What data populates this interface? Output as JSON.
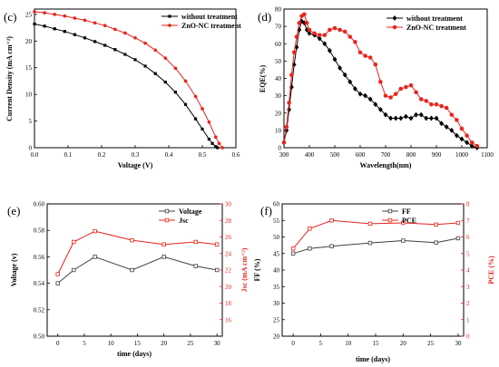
{
  "chart_data": [
    {
      "panel_label": "(c)",
      "type": "line",
      "xlabel": "Voltage (V)",
      "ylabel": "Current Density (mA cm⁻²)",
      "xlim": [
        0.0,
        0.6
      ],
      "ylim": [
        0,
        26
      ],
      "xticks": [
        "0.0",
        "0.1",
        "0.2",
        "0.3",
        "0.4",
        "0.5",
        "0.6"
      ],
      "yticks": [
        "0",
        "5",
        "10",
        "15",
        "20",
        "25"
      ],
      "legend_position": "top-right",
      "series": [
        {
          "name": "without treatment",
          "color": "#000000",
          "marker": "square",
          "x": [
            0.0,
            0.03,
            0.06,
            0.09,
            0.12,
            0.15,
            0.18,
            0.21,
            0.24,
            0.27,
            0.3,
            0.33,
            0.36,
            0.39,
            0.42,
            0.45,
            0.48,
            0.5,
            0.52,
            0.53,
            0.54,
            0.545
          ],
          "y": [
            23.2,
            22.8,
            22.3,
            21.8,
            21.2,
            20.6,
            19.9,
            19.2,
            18.4,
            17.5,
            16.5,
            15.3,
            13.9,
            12.3,
            10.4,
            8.1,
            5.4,
            3.5,
            1.6,
            0.8,
            0.2,
            0
          ]
        },
        {
          "name": "ZnO-NC treatment",
          "color": "#e8241c",
          "marker": "circle",
          "x": [
            0.0,
            0.03,
            0.06,
            0.09,
            0.12,
            0.15,
            0.18,
            0.21,
            0.24,
            0.27,
            0.3,
            0.33,
            0.36,
            0.39,
            0.42,
            0.45,
            0.48,
            0.5,
            0.52,
            0.54,
            0.55,
            0.56
          ],
          "y": [
            25.5,
            25.3,
            25.0,
            24.7,
            24.3,
            23.9,
            23.4,
            22.9,
            22.2,
            21.5,
            20.6,
            19.6,
            18.3,
            16.8,
            14.9,
            12.5,
            9.6,
            7.3,
            4.8,
            2.0,
            0.8,
            0
          ]
        }
      ]
    },
    {
      "panel_label": "(d)",
      "type": "line",
      "xlabel": "Wavelength(nm)",
      "ylabel": "EQE(%)",
      "xlim": [
        300,
        1100
      ],
      "ylim": [
        0,
        80
      ],
      "xticks": [
        "300",
        "400",
        "500",
        "600",
        "700",
        "800",
        "900",
        "1000",
        "1100"
      ],
      "yticks": [
        "0",
        "10",
        "20",
        "30",
        "40",
        "50",
        "60",
        "70",
        "80"
      ],
      "legend_position": "top-right",
      "series": [
        {
          "name": "without treatment",
          "color": "#000000",
          "marker": "diamond",
          "x": [
            300,
            310,
            320,
            330,
            340,
            350,
            360,
            370,
            380,
            390,
            400,
            420,
            440,
            460,
            480,
            500,
            520,
            540,
            560,
            580,
            600,
            620,
            640,
            660,
            680,
            700,
            720,
            740,
            760,
            780,
            800,
            820,
            840,
            860,
            880,
            900,
            920,
            940,
            960,
            980,
            1000,
            1020,
            1040,
            1060
          ],
          "y": [
            3,
            10,
            22,
            35,
            48,
            58,
            68,
            73,
            72,
            68,
            66,
            65,
            63,
            60,
            56,
            51,
            46,
            42,
            38,
            34,
            31,
            30,
            28,
            25,
            22,
            19,
            17,
            17,
            17,
            18,
            17,
            19,
            19,
            17,
            17,
            17,
            14,
            12,
            10,
            7,
            5,
            3,
            1,
            0
          ]
        },
        {
          "name": "ZnO-NC treatment",
          "color": "#e8241c",
          "marker": "circle",
          "x": [
            300,
            310,
            320,
            330,
            340,
            350,
            360,
            370,
            380,
            390,
            400,
            420,
            440,
            460,
            480,
            500,
            520,
            540,
            560,
            580,
            600,
            620,
            640,
            660,
            680,
            700,
            720,
            740,
            760,
            780,
            800,
            820,
            840,
            860,
            880,
            900,
            920,
            940,
            960,
            980,
            1000,
            1020,
            1040,
            1060
          ],
          "y": [
            3,
            12,
            26,
            42,
            55,
            64,
            72,
            76,
            77,
            72,
            68,
            66,
            65,
            65,
            68,
            69,
            68,
            67,
            64,
            61,
            55,
            53,
            52,
            48,
            38,
            30,
            29,
            31,
            34,
            35,
            36,
            32,
            28,
            27,
            25,
            25,
            24,
            23,
            19,
            16,
            11,
            7,
            3,
            1
          ]
        }
      ]
    },
    {
      "panel_label": "(e)",
      "type": "line",
      "xlabel": "time (days)",
      "ylabel_left": "Voltage (v)",
      "ylabel_right": "Jsc (mA cm⁻²)",
      "x": [
        0,
        3,
        7,
        14,
        20,
        26,
        30
      ],
      "xticks": [
        "0",
        "5",
        "10",
        "15",
        "20",
        "25",
        "30"
      ],
      "xlim": [
        -2,
        31
      ],
      "ylim_left": [
        0.5,
        0.6
      ],
      "yticks_left": [
        "0.50",
        "0.52",
        "0.54",
        "0.56",
        "0.58",
        "0.60"
      ],
      "ylim_right": [
        14,
        30
      ],
      "yticks_right": [
        "16",
        "18",
        "20",
        "22",
        "24",
        "26",
        "28",
        "30"
      ],
      "legend_position": "top-right",
      "series": [
        {
          "name": "Voltage",
          "axis": "left",
          "color": "#404040",
          "marker": "square",
          "values": [
            0.54,
            0.55,
            0.56,
            0.55,
            0.56,
            0.553,
            0.55
          ]
        },
        {
          "name": "Jsc",
          "axis": "right",
          "color": "#e8241c",
          "marker": "square",
          "values": [
            21.5,
            25.4,
            26.7,
            25.6,
            25.1,
            25.4,
            25.1
          ]
        }
      ]
    },
    {
      "panel_label": "(f)",
      "type": "line",
      "xlabel": "time (days)",
      "ylabel_left": "FF (%)",
      "ylabel_right": "PCE (%)",
      "x": [
        0,
        3,
        7,
        14,
        20,
        26,
        30
      ],
      "xticks": [
        "0",
        "5",
        "10",
        "15",
        "20",
        "25",
        "30"
      ],
      "xlim": [
        -2,
        31
      ],
      "ylim_left": [
        20,
        60
      ],
      "yticks_left": [
        "20",
        "25",
        "30",
        "35",
        "40",
        "45",
        "50",
        "55",
        "60"
      ],
      "ylim_right": [
        0,
        8
      ],
      "yticks_right": [
        "0",
        "1",
        "2",
        "3",
        "4",
        "5",
        "6",
        "7",
        "8"
      ],
      "legend_position": "top-right",
      "series": [
        {
          "name": "FF",
          "axis": "left",
          "color": "#404040",
          "marker": "square",
          "values": [
            45.0,
            46.5,
            47.2,
            48.2,
            48.9,
            48.3,
            49.6
          ]
        },
        {
          "name": "PCE",
          "axis": "right",
          "color": "#e8241c",
          "marker": "square",
          "values": [
            5.3,
            6.5,
            7.0,
            6.8,
            6.85,
            6.75,
            6.85
          ]
        }
      ]
    }
  ]
}
